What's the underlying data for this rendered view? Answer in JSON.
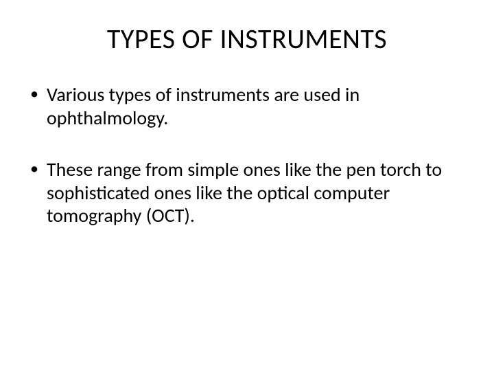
{
  "slide": {
    "title": "TYPES OF INSTRUMENTS",
    "bullets": [
      "Various types of instruments are used in ophthalmology.",
      "These range from simple ones like the pen torch to sophisticated ones like the optical computer tomography (OCT)."
    ],
    "colors": {
      "background": "#ffffff",
      "text": "#000000"
    },
    "typography": {
      "title_fontsize_pt": 40,
      "body_fontsize_pt": 28,
      "font_family": "Calibri"
    }
  }
}
